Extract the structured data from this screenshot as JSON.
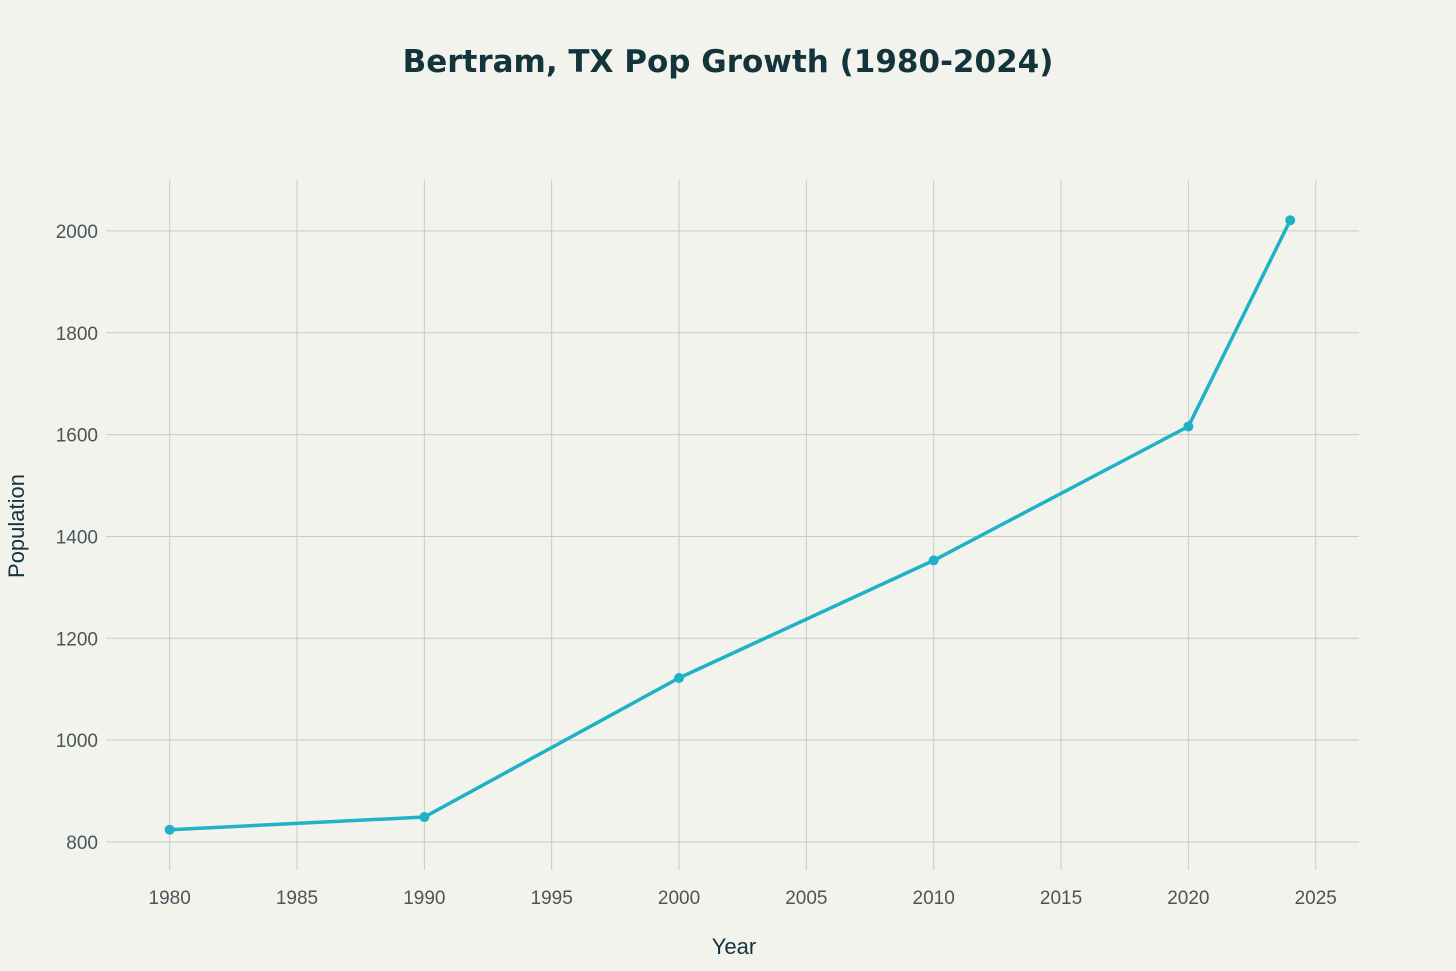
{
  "chart_data": {
    "type": "line",
    "title": "Bertram, TX Pop Growth (1980-2024)",
    "xlabel": "Year",
    "ylabel": "Population",
    "x": [
      1980,
      1990,
      2000,
      2010,
      2020,
      2024
    ],
    "series": [
      {
        "values": [
          824,
          849,
          1122,
          1353,
          1616,
          2021
        ]
      }
    ],
    "xlim": [
      1977.5,
      2026.7
    ],
    "ylim": [
      745,
      2100
    ],
    "x_ticks": [
      1980,
      1985,
      1990,
      1995,
      2000,
      2005,
      2010,
      2015,
      2020,
      2025
    ],
    "y_ticks": [
      800,
      1000,
      1200,
      1400,
      1600,
      1800,
      2000
    ],
    "x_tick_labels": [
      "1980",
      "1985",
      "1990",
      "1995",
      "2000",
      "2005",
      "2010",
      "2015",
      "2020",
      "2025"
    ],
    "y_tick_labels": [
      "800",
      "1000",
      "1200",
      "1400",
      "1600",
      "1800",
      "2000"
    ],
    "grid": true,
    "legend": "none",
    "colors": {
      "line": "#1fb2c6",
      "background": "#f3f3ee",
      "grid": "#c9cac5"
    }
  }
}
